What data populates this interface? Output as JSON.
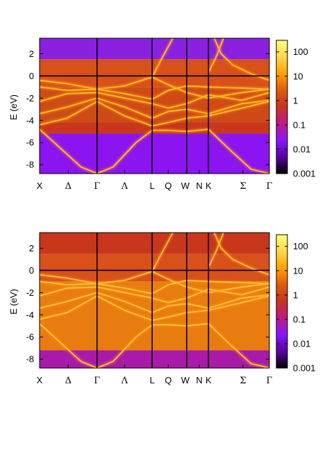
{
  "colors": {
    "colormap": [
      "#000000",
      "#5a00a0",
      "#8a14ff",
      "#c01888",
      "#c8321e",
      "#e05a10",
      "#ffa000",
      "#ffd84a",
      "#ffff7a"
    ],
    "line": "#000000"
  },
  "chart_data": [
    {
      "type": "heatmap",
      "ylabel": "E (eV)",
      "ylim": [
        -8.8,
        3.4
      ],
      "yticks": [
        "2",
        "0",
        "-2",
        "-4",
        "-6",
        "-8"
      ],
      "ytick_values": [
        2,
        0,
        -2,
        -4,
        -6,
        -8
      ],
      "xlim": [
        0,
        10
      ],
      "kpoints": [
        {
          "label": "X",
          "pos": 0,
          "greek": false
        },
        {
          "label": "Δ",
          "pos": 1.25,
          "greek": true
        },
        {
          "label": "Γ",
          "pos": 2.5,
          "greek": true
        },
        {
          "label": "Λ",
          "pos": 3.7,
          "greek": true
        },
        {
          "label": "L",
          "pos": 4.9,
          "greek": false
        },
        {
          "label": "Q",
          "pos": 5.6,
          "greek": false
        },
        {
          "label": "W",
          "pos": 6.4,
          "greek": false
        },
        {
          "label": "N",
          "pos": 6.95,
          "greek": false
        },
        {
          "label": "K",
          "pos": 7.35,
          "greek": false
        },
        {
          "label": "Σ",
          "pos": 8.85,
          "greek": true
        },
        {
          "label": "Γ",
          "pos": 10,
          "greek": true
        }
      ],
      "vlines": [
        2.5,
        4.9,
        6.4,
        7.35
      ],
      "hline": 0,
      "colorbar": {
        "ticks": [
          "100",
          "10",
          "1",
          "0.1",
          "0.01",
          "0.001"
        ],
        "scale": "log",
        "range": [
          0.001,
          300
        ]
      },
      "background_bands": [
        {
          "emin": 1.5,
          "emax": 3.4,
          "level": "purple"
        },
        {
          "emin": -1,
          "emax": 1.5,
          "level": "dark-orange"
        },
        {
          "emin": -4.2,
          "emax": -1,
          "level": "red-orange"
        },
        {
          "emin": -5.2,
          "emax": -4.2,
          "level": "red"
        },
        {
          "emin": -8.8,
          "emax": -5.2,
          "level": "violet"
        }
      ]
    },
    {
      "type": "heatmap",
      "ylabel": "E (eV)",
      "ylim": [
        -8.8,
        3.4
      ],
      "yticks": [
        "2",
        "0",
        "-2",
        "-4",
        "-6",
        "-8"
      ],
      "ytick_values": [
        2,
        0,
        -2,
        -4,
        -6,
        -8
      ],
      "xlim": [
        0,
        10
      ],
      "kpoints": [
        {
          "label": "X",
          "pos": 0,
          "greek": false
        },
        {
          "label": "Δ",
          "pos": 1.25,
          "greek": true
        },
        {
          "label": "Γ",
          "pos": 2.5,
          "greek": true
        },
        {
          "label": "Λ",
          "pos": 3.7,
          "greek": true
        },
        {
          "label": "L",
          "pos": 4.9,
          "greek": false
        },
        {
          "label": "Q",
          "pos": 5.6,
          "greek": false
        },
        {
          "label": "W",
          "pos": 6.4,
          "greek": false
        },
        {
          "label": "N",
          "pos": 6.95,
          "greek": false
        },
        {
          "label": "K",
          "pos": 7.35,
          "greek": false
        },
        {
          "label": "Σ",
          "pos": 8.85,
          "greek": true
        },
        {
          "label": "Γ",
          "pos": 10,
          "greek": true
        }
      ],
      "vlines": [
        2.5,
        4.9,
        6.4,
        7.35
      ],
      "hline": 0,
      "colorbar": {
        "ticks": [
          "100",
          "10",
          "1",
          "0.1",
          "0.01",
          "0.001"
        ],
        "scale": "log",
        "range": [
          0.001,
          300
        ]
      },
      "background_bands": [
        {
          "emin": 1.5,
          "emax": 3.4,
          "level": "red"
        },
        {
          "emin": -1,
          "emax": 1.5,
          "level": "dark-orange"
        },
        {
          "emin": -7.2,
          "emax": -1,
          "level": "orange"
        },
        {
          "emin": -8.8,
          "emax": -7.2,
          "level": "magenta"
        }
      ]
    }
  ]
}
